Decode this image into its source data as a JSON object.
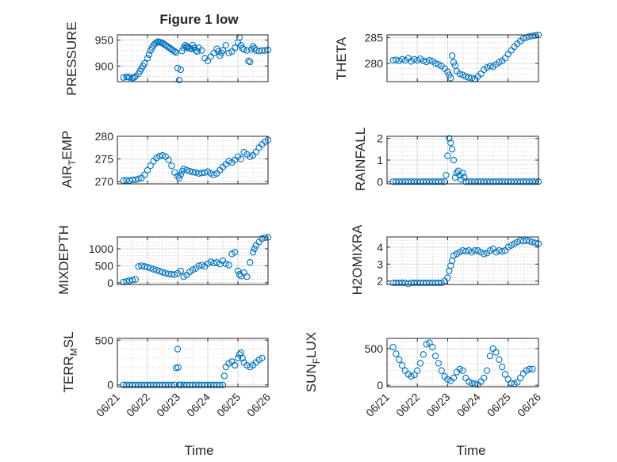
{
  "figure": {
    "title": "Figure 1 low",
    "marker_color": "#0072BD"
  },
  "chart_data": [
    {
      "type": "scatter",
      "id": "pressure",
      "ylabel": "PRESSURE",
      "title": "Figure 1 low",
      "xlim": [
        0,
        5
      ],
      "ylim": [
        870,
        960
      ],
      "yticks": [
        900,
        950
      ],
      "xticks": [
        "06/21",
        "06/22",
        "06/23",
        "06/24",
        "06/25",
        "06/26"
      ],
      "show_xticklabels": false,
      "x": [
        0.2,
        0.3,
        0.35,
        0.4,
        0.5,
        0.55,
        0.6,
        0.7,
        0.75,
        0.8,
        0.85,
        0.9,
        1.0,
        1.05,
        1.1,
        1.15,
        1.2,
        1.25,
        1.3,
        1.35,
        1.4,
        1.45,
        1.5,
        1.55,
        1.6,
        1.65,
        1.7,
        1.75,
        1.8,
        1.85,
        1.9,
        1.95,
        2.0,
        2.05,
        2.1,
        2.15,
        2.2,
        2.25,
        2.3,
        2.3,
        2.35,
        2.4,
        2.45,
        2.5,
        2.55,
        2.6,
        2.65,
        2.7,
        2.8,
        2.9,
        3.0,
        3.1,
        3.2,
        3.3,
        3.35,
        3.4,
        3.45,
        3.5,
        3.6,
        3.7,
        3.8,
        3.9,
        4.0,
        4.05,
        4.1,
        4.15,
        4.2,
        4.3,
        4.35,
        4.4,
        4.45,
        4.5,
        4.55,
        4.6,
        4.7,
        4.8,
        4.9,
        5.0
      ],
      "y": [
        878,
        879,
        879,
        878,
        877,
        878,
        880,
        885,
        890,
        895,
        900,
        905,
        915,
        922,
        930,
        935,
        940,
        943,
        945,
        947,
        946,
        945,
        944,
        942,
        940,
        938,
        936,
        934,
        932,
        930,
        928,
        926,
        896,
        873,
        893,
        929,
        935,
        940,
        938,
        935,
        936,
        934,
        933,
        940,
        935,
        930,
        928,
        935,
        930,
        915,
        910,
        918,
        925,
        933,
        928,
        920,
        925,
        930,
        940,
        925,
        928,
        935,
        945,
        955,
        940,
        934,
        932,
        930,
        910,
        908,
        932,
        938,
        934,
        930,
        929,
        930,
        930,
        931
      ]
    },
    {
      "type": "scatter",
      "id": "theta",
      "ylabel": "THETA",
      "xlim": [
        0,
        5
      ],
      "ylim": [
        276.5,
        285.5
      ],
      "yticks": [
        280,
        285
      ],
      "xticks": [
        "06/21",
        "06/22",
        "06/23",
        "06/24",
        "06/25",
        "06/26"
      ],
      "show_xticklabels": false,
      "x": [
        0.2,
        0.3,
        0.4,
        0.5,
        0.6,
        0.7,
        0.8,
        0.9,
        1.0,
        1.1,
        1.2,
        1.3,
        1.4,
        1.5,
        1.6,
        1.7,
        1.8,
        1.9,
        2.0,
        2.05,
        2.1,
        2.15,
        2.2,
        2.25,
        2.3,
        2.4,
        2.5,
        2.6,
        2.7,
        2.8,
        2.9,
        3.0,
        3.1,
        3.2,
        3.3,
        3.4,
        3.5,
        3.6,
        3.7,
        3.8,
        3.9,
        4.0,
        4.1,
        4.2,
        4.3,
        4.4,
        4.5,
        4.6,
        4.7,
        4.8,
        4.9,
        5.0
      ],
      "y": [
        280.6,
        280.7,
        280.5,
        280.8,
        280.6,
        281.0,
        280.4,
        280.8,
        280.6,
        280.9,
        280.5,
        280.3,
        280.6,
        280.4,
        280.0,
        279.8,
        279.5,
        279.0,
        278.4,
        277.8,
        277.2,
        281.5,
        280.2,
        279.6,
        278.5,
        278.0,
        277.8,
        277.5,
        277.3,
        277.2,
        277.0,
        277.5,
        278.0,
        278.8,
        279.2,
        279.5,
        279.4,
        279.8,
        280.2,
        280.5,
        281.0,
        281.8,
        282.5,
        283.2,
        283.8,
        284.3,
        284.8,
        285.0,
        285.2,
        285.3,
        285.4,
        285.5
      ]
    },
    {
      "type": "scatter",
      "id": "air_temp",
      "ylabel": "AIR_TEMP",
      "ylabel_main": "AIR",
      "ylabel_sub": "T",
      "ylabel_rest": "EMP",
      "xlim": [
        0,
        5
      ],
      "ylim": [
        269.5,
        280
      ],
      "yticks": [
        270,
        275,
        280
      ],
      "xticks": [
        "06/21",
        "06/22",
        "06/23",
        "06/24",
        "06/25",
        "06/26"
      ],
      "show_xticklabels": false,
      "x": [
        0.2,
        0.3,
        0.4,
        0.5,
        0.6,
        0.7,
        0.8,
        0.9,
        1.0,
        1.1,
        1.2,
        1.3,
        1.4,
        1.5,
        1.6,
        1.7,
        1.8,
        1.9,
        2.0,
        2.05,
        2.1,
        2.15,
        2.2,
        2.3,
        2.4,
        2.5,
        2.6,
        2.7,
        2.8,
        2.9,
        3.0,
        3.1,
        3.2,
        3.3,
        3.4,
        3.5,
        3.6,
        3.7,
        3.8,
        3.9,
        4.0,
        4.1,
        4.2,
        4.3,
        4.4,
        4.5,
        4.6,
        4.7,
        4.8,
        4.9,
        5.0
      ],
      "y": [
        270.2,
        270.3,
        270.2,
        270.4,
        270.4,
        270.6,
        270.8,
        271.5,
        272.5,
        273.5,
        274.5,
        275.2,
        275.6,
        275.8,
        275.5,
        274.8,
        273.5,
        272.0,
        271.2,
        270.8,
        271.5,
        272.3,
        272.8,
        272.5,
        272.3,
        272.1,
        272.0,
        271.8,
        271.9,
        272.0,
        272.2,
        271.8,
        271.5,
        271.8,
        272.5,
        273.2,
        273.8,
        274.5,
        274.2,
        274.8,
        275.5,
        275.0,
        276.5,
        276.0,
        275.5,
        275.8,
        276.5,
        277.5,
        278.2,
        278.8,
        279.2
      ]
    },
    {
      "type": "scatter",
      "id": "rainfall",
      "ylabel": "RAINFALL",
      "xlim": [
        0,
        5
      ],
      "ylim": [
        -0.1,
        2.1
      ],
      "yticks": [
        0,
        1,
        2
      ],
      "xticks": [
        "06/21",
        "06/22",
        "06/23",
        "06/24",
        "06/25",
        "06/26"
      ],
      "show_xticklabels": false,
      "x": [
        0.2,
        0.3,
        0.4,
        0.5,
        0.6,
        0.7,
        0.8,
        0.9,
        1.0,
        1.1,
        1.2,
        1.3,
        1.4,
        1.5,
        1.6,
        1.7,
        1.8,
        1.9,
        1.95,
        2.0,
        2.05,
        2.1,
        2.15,
        2.2,
        2.25,
        2.3,
        2.35,
        2.4,
        2.45,
        2.5,
        2.55,
        2.6,
        2.7,
        2.8,
        2.9,
        3.0,
        3.1,
        3.2,
        3.3,
        3.4,
        3.5,
        3.6,
        3.7,
        3.8,
        3.9,
        4.0,
        4.1,
        4.2,
        4.3,
        4.4,
        4.5,
        4.6,
        4.7,
        4.8,
        4.9,
        5.0
      ],
      "y": [
        0,
        0,
        0,
        0,
        0,
        0,
        0,
        0,
        0,
        0,
        0,
        0,
        0,
        0,
        0,
        0,
        0,
        0,
        0.3,
        1.2,
        2.0,
        1.8,
        1.5,
        1.0,
        0.2,
        0.4,
        0.5,
        0.3,
        0.1,
        0.4,
        0.2,
        0,
        0,
        0,
        0,
        0,
        0,
        0,
        0,
        0,
        0,
        0,
        0,
        0,
        0,
        0,
        0,
        0,
        0,
        0,
        0,
        0,
        0,
        0,
        0,
        0
      ]
    },
    {
      "type": "scatter",
      "id": "mixdepth",
      "ylabel": "MIXDEPTH",
      "xlim": [
        0,
        5
      ],
      "ylim": [
        -50,
        1350
      ],
      "yticks": [
        0,
        500,
        1000
      ],
      "xticks": [
        "06/21",
        "06/22",
        "06/23",
        "06/24",
        "06/25",
        "06/26"
      ],
      "show_xticklabels": false,
      "x": [
        0.2,
        0.3,
        0.4,
        0.5,
        0.6,
        0.7,
        0.8,
        0.9,
        1.0,
        1.1,
        1.2,
        1.3,
        1.4,
        1.5,
        1.6,
        1.7,
        1.8,
        1.9,
        2.0,
        2.1,
        2.2,
        2.3,
        2.4,
        2.5,
        2.6,
        2.7,
        2.8,
        2.9,
        3.0,
        3.1,
        3.2,
        3.3,
        3.4,
        3.5,
        3.6,
        3.7,
        3.8,
        3.9,
        4.0,
        4.05,
        4.1,
        4.2,
        4.3,
        4.4,
        4.5,
        4.55,
        4.6,
        4.7,
        4.8,
        4.9,
        5.0
      ],
      "y": [
        20,
        40,
        60,
        80,
        100,
        480,
        500,
        480,
        460,
        430,
        400,
        370,
        340,
        310,
        280,
        260,
        250,
        240,
        280,
        350,
        180,
        230,
        320,
        380,
        420,
        500,
        520,
        480,
        560,
        620,
        580,
        600,
        550,
        650,
        560,
        520,
        850,
        900,
        350,
        250,
        200,
        300,
        180,
        600,
        900,
        1000,
        1100,
        1200,
        1300,
        1330,
        1340
      ]
    },
    {
      "type": "scatter",
      "id": "h2omixra",
      "ylabel": "H2OMIXRA",
      "xlim": [
        0,
        5
      ],
      "ylim": [
        1.8,
        4.6
      ],
      "yticks": [
        2,
        3,
        4
      ],
      "xticks": [
        "06/21",
        "06/22",
        "06/23",
        "06/24",
        "06/25",
        "06/26"
      ],
      "show_xticklabels": false,
      "x": [
        0.2,
        0.3,
        0.4,
        0.5,
        0.6,
        0.7,
        0.8,
        0.9,
        1.0,
        1.1,
        1.2,
        1.3,
        1.4,
        1.5,
        1.6,
        1.7,
        1.8,
        1.9,
        2.0,
        2.05,
        2.1,
        2.15,
        2.2,
        2.3,
        2.4,
        2.5,
        2.6,
        2.7,
        2.8,
        2.9,
        3.0,
        3.1,
        3.2,
        3.3,
        3.4,
        3.5,
        3.6,
        3.7,
        3.8,
        3.9,
        4.0,
        4.1,
        4.2,
        4.3,
        4.4,
        4.5,
        4.6,
        4.7,
        4.8,
        4.9,
        5.0
      ],
      "y": [
        1.9,
        1.9,
        1.9,
        1.9,
        1.9,
        1.85,
        1.9,
        1.9,
        1.9,
        1.9,
        1.9,
        1.9,
        1.9,
        1.9,
        1.9,
        1.9,
        1.9,
        2.0,
        2.2,
        2.6,
        2.9,
        3.2,
        3.5,
        3.6,
        3.7,
        3.8,
        3.75,
        3.8,
        3.7,
        3.8,
        3.8,
        3.7,
        3.6,
        3.65,
        3.8,
        3.9,
        3.7,
        3.8,
        3.75,
        3.8,
        4.0,
        4.1,
        4.2,
        4.3,
        4.4,
        4.35,
        4.4,
        4.35,
        4.3,
        4.25,
        4.2
      ]
    },
    {
      "type": "scatter",
      "id": "terr_msl",
      "ylabel": "TERR_MSL",
      "ylabel_main": "TERR",
      "ylabel_sub": "M",
      "ylabel_rest": "SL",
      "xlim": [
        0,
        5
      ],
      "ylim": [
        -20,
        520
      ],
      "yticks": [
        0,
        500
      ],
      "xticks": [
        "06/21",
        "06/22",
        "06/23",
        "06/24",
        "06/25",
        "06/26"
      ],
      "show_xticklabels": true,
      "x": [
        0.2,
        0.3,
        0.4,
        0.5,
        0.6,
        0.7,
        0.8,
        0.9,
        1.0,
        1.1,
        1.2,
        1.3,
        1.4,
        1.5,
        1.6,
        1.7,
        1.8,
        1.9,
        1.95,
        2.0,
        2.02,
        2.05,
        2.1,
        2.2,
        2.3,
        2.4,
        2.5,
        2.6,
        2.7,
        2.8,
        2.9,
        3.0,
        3.1,
        3.2,
        3.3,
        3.4,
        3.5,
        3.55,
        3.6,
        3.7,
        3.8,
        3.9,
        4.0,
        4.05,
        4.1,
        4.15,
        4.2,
        4.3,
        4.4,
        4.5,
        4.6,
        4.7,
        4.8
      ],
      "y": [
        0,
        0,
        0,
        0,
        0,
        0,
        0,
        0,
        0,
        0,
        0,
        0,
        0,
        0,
        0,
        0,
        0,
        0,
        190,
        400,
        195,
        0,
        0,
        0,
        0,
        0,
        0,
        0,
        0,
        0,
        0,
        0,
        0,
        0,
        0,
        0,
        0,
        100,
        200,
        240,
        260,
        220,
        300,
        340,
        360,
        300,
        250,
        220,
        200,
        220,
        250,
        280,
        300
      ]
    },
    {
      "type": "scatter",
      "id": "sun_flux",
      "ylabel": "SUN_FLUX",
      "ylabel_main": "SUN",
      "ylabel_sub": "F",
      "ylabel_rest": "LUX",
      "xlim": [
        0,
        5
      ],
      "ylim": [
        -20,
        640
      ],
      "yticks": [
        0,
        500
      ],
      "xticks": [
        "06/21",
        "06/22",
        "06/23",
        "06/24",
        "06/25",
        "06/26"
      ],
      "show_xticklabels": true,
      "x": [
        0.2,
        0.3,
        0.4,
        0.5,
        0.6,
        0.7,
        0.8,
        0.9,
        1.0,
        1.1,
        1.2,
        1.3,
        1.4,
        1.5,
        1.6,
        1.7,
        1.8,
        1.9,
        2.0,
        2.1,
        2.2,
        2.3,
        2.4,
        2.5,
        2.6,
        2.7,
        2.8,
        2.9,
        3.0,
        3.1,
        3.2,
        3.3,
        3.4,
        3.5,
        3.6,
        3.7,
        3.8,
        3.9,
        4.0,
        4.1,
        4.2,
        4.3,
        4.4,
        4.5,
        4.6,
        4.7,
        4.8
      ],
      "y": [
        520,
        430,
        350,
        270,
        200,
        150,
        120,
        140,
        200,
        300,
        420,
        560,
        580,
        520,
        400,
        300,
        200,
        120,
        80,
        60,
        100,
        180,
        220,
        200,
        100,
        50,
        30,
        20,
        10,
        50,
        100,
        200,
        400,
        500,
        450,
        350,
        250,
        150,
        80,
        30,
        20,
        40,
        100,
        160,
        200,
        220,
        220
      ]
    }
  ],
  "xlabel_text": "Time"
}
